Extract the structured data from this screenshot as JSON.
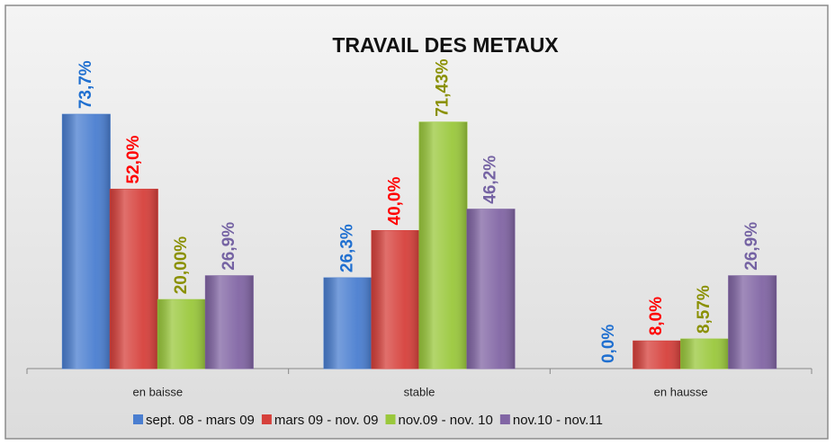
{
  "chart_data": {
    "type": "bar",
    "title": "TRAVAIL DES METAUX",
    "categories": [
      "en baisse",
      "stable",
      "en hausse"
    ],
    "ylim": [
      0,
      80
    ],
    "series": [
      {
        "name": "sept. 08 - mars 09",
        "color": "#4a7ed0",
        "label_color": "#1f6fd0",
        "values": [
          73.7,
          26.3,
          0.0
        ],
        "value_labels": [
          "73,7%",
          "26,3%",
          "0,0%"
        ]
      },
      {
        "name": "mars 09 - nov. 09",
        "color": "#d6403b",
        "label_color": "#ff0000",
        "values": [
          52.0,
          40.0,
          8.0
        ],
        "value_labels": [
          "52,0%",
          "40,0%",
          "8,0%"
        ]
      },
      {
        "name": "nov.09 - nov. 10",
        "color": "#9ac83c",
        "label_color": "#8a9000",
        "values": [
          20.0,
          71.43,
          8.57
        ],
        "value_labels": [
          "20,00%",
          "71,43%",
          "8,57%"
        ]
      },
      {
        "name": "nov.10 - nov.11",
        "color": "#8165a4",
        "label_color": "#7563a3",
        "values": [
          26.9,
          46.2,
          26.9
        ],
        "value_labels": [
          "26,9%",
          "46,2%",
          "26,9%"
        ]
      }
    ]
  }
}
